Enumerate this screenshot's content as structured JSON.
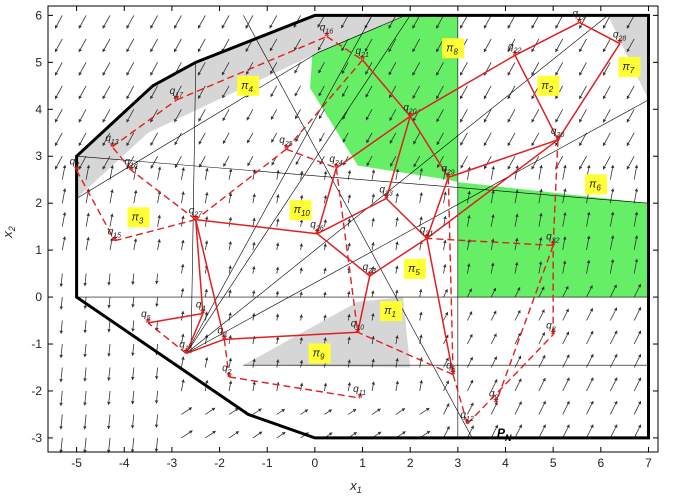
{
  "figure": {
    "xlabel": "x",
    "xlabel_sub": "1",
    "ylabel": "x",
    "ylabel_sub": "2",
    "xticks": [
      "-5",
      "-4",
      "-3",
      "-2",
      "-1",
      "0",
      "1",
      "2",
      "3",
      "4",
      "5",
      "6",
      "7"
    ],
    "yticks": [
      "-3",
      "-2",
      "-1",
      "0",
      "1",
      "2",
      "3",
      "4",
      "5",
      "6"
    ],
    "xlim": [
      -5.6,
      7.2
    ],
    "ylim": [
      -3.3,
      6.2
    ],
    "pn_label": "P",
    "pn_sub": "N",
    "colors": {
      "green": "#66ee66",
      "grey": "#d6d6d6",
      "trajectory": "#e02020",
      "boundary": "#000000",
      "label_bg": "#ffff33",
      "vectors": "#333333"
    }
  },
  "boundary_polygon": [
    [
      -5.0,
      3.0
    ],
    [
      -3.4,
      4.5
    ],
    [
      -2.5,
      5.0
    ],
    [
      0.0,
      6.0
    ],
    [
      7.0,
      6.0
    ],
    [
      7.0,
      -3.0
    ],
    [
      3.0,
      -3.0
    ],
    [
      0.0,
      -3.0
    ],
    [
      -1.4,
      -2.5
    ],
    [
      -5.0,
      0.0
    ]
  ],
  "regions": [
    {
      "id": "pi1",
      "label": "π",
      "sub": "1",
      "at": [
        1.6,
        -0.3
      ]
    },
    {
      "id": "pi2",
      "label": "π",
      "sub": "2",
      "at": [
        4.9,
        4.5
      ]
    },
    {
      "id": "pi3",
      "label": "π",
      "sub": "3",
      "at": [
        -3.7,
        1.7
      ]
    },
    {
      "id": "pi4",
      "label": "π",
      "sub": "4",
      "at": [
        -1.4,
        4.5
      ]
    },
    {
      "id": "pi5",
      "label": "π",
      "sub": "5",
      "at": [
        2.1,
        0.6
      ]
    },
    {
      "id": "pi6",
      "label": "π",
      "sub": "6",
      "at": [
        5.9,
        2.4
      ]
    },
    {
      "id": "pi7",
      "label": "π",
      "sub": "7",
      "at": [
        6.6,
        4.9
      ]
    },
    {
      "id": "pi8",
      "label": "π",
      "sub": "8",
      "at": [
        2.9,
        5.3
      ]
    },
    {
      "id": "pi9",
      "label": "π",
      "sub": "9",
      "at": [
        0.1,
        -1.2
      ]
    },
    {
      "id": "pi10",
      "label": "π",
      "sub": "10",
      "at": [
        -0.3,
        1.85
      ]
    }
  ],
  "nodes": [
    {
      "id": "q1",
      "sub": "1",
      "x": -2.7,
      "y": -1.2
    },
    {
      "id": "q2",
      "sub": "2",
      "x": -1.8,
      "y": -1.7
    },
    {
      "id": "q3",
      "sub": "3",
      "x": -1.9,
      "y": -0.9
    },
    {
      "id": "q4",
      "sub": "4",
      "x": -2.35,
      "y": -0.35
    },
    {
      "id": "q5",
      "sub": "5",
      "x": -3.5,
      "y": -0.55
    },
    {
      "id": "q6",
      "sub": "6",
      "x": 2.9,
      "y": -1.65
    },
    {
      "id": "q7",
      "sub": "7",
      "x": -5.0,
      "y": 2.7
    },
    {
      "id": "q8",
      "sub": "8",
      "x": 5.0,
      "y": -0.8
    },
    {
      "id": "q9",
      "sub": "9",
      "x": 3.8,
      "y": -2.25
    },
    {
      "id": "q10",
      "sub": "10",
      "x": 0.9,
      "y": -0.75
    },
    {
      "id": "q11",
      "sub": "11",
      "x": 0.95,
      "y": -2.15
    },
    {
      "id": "q12",
      "sub": "12",
      "x": 3.2,
      "y": -2.7
    },
    {
      "id": "q13",
      "sub": "13",
      "x": -4.25,
      "y": 3.2
    },
    {
      "id": "q15",
      "sub": "15",
      "x": -4.2,
      "y": 1.2
    },
    {
      "id": "q16",
      "sub": "16",
      "x": 0.25,
      "y": 5.55
    },
    {
      "id": "q17",
      "sub": "17",
      "x": -2.9,
      "y": 4.2
    },
    {
      "id": "q18",
      "sub": "18",
      "x": -3.85,
      "y": 2.7
    },
    {
      "id": "q19",
      "sub": "19",
      "x": 5.55,
      "y": 5.85
    },
    {
      "id": "q20",
      "sub": "20",
      "x": 2.0,
      "y": 3.85
    },
    {
      "id": "q21",
      "sub": "21",
      "x": 1.0,
      "y": 5.05
    },
    {
      "id": "q22",
      "sub": "22",
      "x": 4.2,
      "y": 5.15
    },
    {
      "id": "q23",
      "sub": "23",
      "x": 1.5,
      "y": 2.1
    },
    {
      "id": "q24",
      "sub": "24",
      "x": 0.45,
      "y": 2.75
    },
    {
      "id": "q25",
      "sub": "25",
      "x": -0.6,
      "y": 3.15
    },
    {
      "id": "q26",
      "sub": "26",
      "x": 0.05,
      "y": 1.35
    },
    {
      "id": "q27",
      "sub": "27",
      "x": -2.5,
      "y": 1.65
    },
    {
      "id": "q28",
      "sub": "28",
      "x": 6.4,
      "y": 5.4
    },
    {
      "id": "q29",
      "sub": "29",
      "x": 2.8,
      "y": 2.55
    },
    {
      "id": "q30",
      "sub": "30",
      "x": 5.1,
      "y": 3.35
    },
    {
      "id": "q31",
      "sub": "31",
      "x": 2.35,
      "y": 1.25
    },
    {
      "id": "q32",
      "sub": "32",
      "x": 5.0,
      "y": 1.1
    },
    {
      "id": "q33",
      "sub": "33",
      "x": 1.15,
      "y": 0.45
    }
  ],
  "solid_edges": [
    [
      "q1",
      "q3"
    ],
    [
      "q1",
      "q4"
    ],
    [
      "q4",
      "q5"
    ],
    [
      "q4",
      "q27"
    ],
    [
      "q3",
      "q27"
    ],
    [
      "q3",
      "q10"
    ],
    [
      "q10",
      "q33"
    ],
    [
      "q33",
      "q26"
    ],
    [
      "q27",
      "q26"
    ],
    [
      "q26",
      "q24"
    ],
    [
      "q26",
      "q23"
    ],
    [
      "q23",
      "q31"
    ],
    [
      "q23",
      "q20"
    ],
    [
      "q24",
      "q20"
    ],
    [
      "q20",
      "q21"
    ],
    [
      "q20",
      "q22"
    ],
    [
      "q20",
      "q29"
    ],
    [
      "q29",
      "q30"
    ],
    [
      "q30",
      "q22"
    ],
    [
      "q30",
      "q31"
    ],
    [
      "q30",
      "q28"
    ],
    [
      "q28",
      "q19"
    ],
    [
      "q19",
      "q22"
    ],
    [
      "q31",
      "q33"
    ],
    [
      "q31",
      "q6"
    ],
    [
      "q31",
      "q29"
    ]
  ],
  "dashed_edges": [
    [
      "q1",
      "q5"
    ],
    [
      "q3",
      "q2"
    ],
    [
      "q2",
      "q11"
    ],
    [
      "q6",
      "q10"
    ],
    [
      "q6",
      "q12"
    ],
    [
      "q12",
      "q8"
    ],
    [
      "q8",
      "q32"
    ],
    [
      "q32",
      "q31"
    ],
    [
      "q29",
      "q6"
    ],
    [
      "q27",
      "q18"
    ],
    [
      "q18",
      "q13"
    ],
    [
      "q13",
      "q17"
    ],
    [
      "q17",
      "q16"
    ],
    [
      "q16",
      "q21"
    ],
    [
      "q21",
      "q25"
    ],
    [
      "q25",
      "q27"
    ],
    [
      "q25",
      "q24"
    ],
    [
      "q7",
      "q15"
    ],
    [
      "q15",
      "q27"
    ],
    [
      "q30",
      "q32"
    ],
    [
      "q32",
      "q9"
    ],
    [
      "q24",
      "q10"
    ]
  ]
}
